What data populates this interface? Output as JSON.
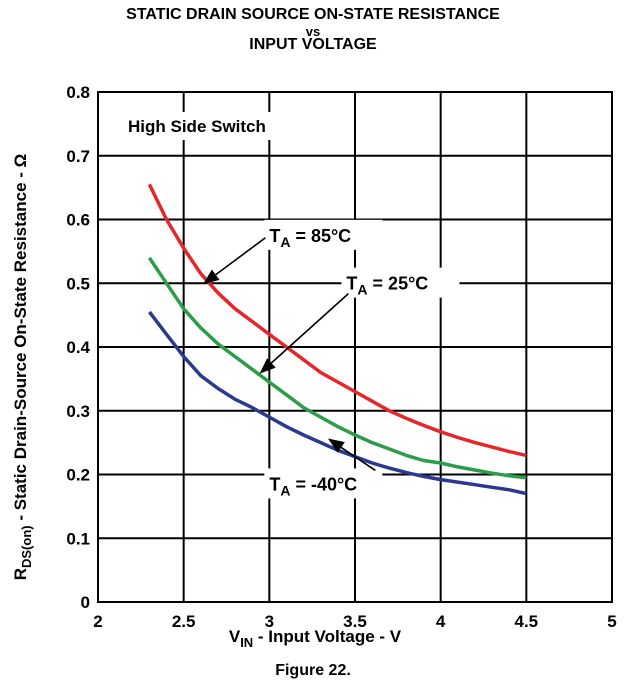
{
  "chart_data": {
    "type": "line",
    "title_lines": [
      "STATIC DRAIN SOURCE ON-STATE RESISTANCE",
      "vs",
      "INPUT VOLTAGE"
    ],
    "xlabel": {
      "main": "V",
      "sub": "IN",
      "rest": " - Input Voltage - V"
    },
    "ylabel": {
      "main": "R",
      "sub": "DS(on)",
      "rest": " - Static Drain-Source On-State Resistance - Ω"
    },
    "xlim": [
      2,
      5
    ],
    "ylim": [
      0,
      0.8
    ],
    "x_ticks": [
      2,
      2.5,
      3,
      3.5,
      4,
      4.5,
      5
    ],
    "x_tick_labels": [
      "2",
      "2.5",
      "3",
      "3.5",
      "4",
      "4.5",
      "5"
    ],
    "y_ticks": [
      0,
      0.1,
      0.2,
      0.3,
      0.4,
      0.5,
      0.6,
      0.7,
      0.8
    ],
    "y_tick_labels": [
      "0",
      "0.1",
      "0.2",
      "0.3",
      "0.4",
      "0.5",
      "0.6",
      "0.7",
      "0.8"
    ],
    "grid": true,
    "annotation_box": "High Side Switch",
    "series": [
      {
        "color": "#e8262a",
        "x": [
          2.3,
          2.4,
          2.5,
          2.6,
          2.7,
          2.8,
          2.9,
          3.0,
          3.1,
          3.2,
          3.3,
          3.4,
          3.5,
          3.6,
          3.7,
          3.8,
          3.9,
          4.0,
          4.1,
          4.2,
          4.3,
          4.4,
          4.5
        ],
        "y": [
          0.655,
          0.6,
          0.555,
          0.515,
          0.485,
          0.46,
          0.44,
          0.42,
          0.4,
          0.38,
          0.36,
          0.345,
          0.33,
          0.315,
          0.3,
          0.288,
          0.277,
          0.267,
          0.258,
          0.25,
          0.243,
          0.236,
          0.23
        ]
      },
      {
        "color": "#2a9d48",
        "x": [
          2.3,
          2.4,
          2.5,
          2.6,
          2.7,
          2.8,
          2.9,
          3.0,
          3.1,
          3.2,
          3.3,
          3.4,
          3.5,
          3.6,
          3.7,
          3.8,
          3.9,
          4.0,
          4.1,
          4.2,
          4.3,
          4.4,
          4.5
        ],
        "y": [
          0.54,
          0.5,
          0.46,
          0.43,
          0.405,
          0.385,
          0.365,
          0.345,
          0.325,
          0.305,
          0.29,
          0.275,
          0.262,
          0.25,
          0.24,
          0.23,
          0.222,
          0.218,
          0.212,
          0.207,
          0.202,
          0.198,
          0.195
        ]
      },
      {
        "color": "#2b3990",
        "x": [
          2.3,
          2.4,
          2.5,
          2.6,
          2.7,
          2.8,
          2.9,
          3.0,
          3.1,
          3.2,
          3.3,
          3.4,
          3.5,
          3.6,
          3.7,
          3.8,
          3.9,
          4.0,
          4.1,
          4.2,
          4.3,
          4.4,
          4.5
        ],
        "y": [
          0.455,
          0.42,
          0.385,
          0.355,
          0.335,
          0.318,
          0.305,
          0.29,
          0.275,
          0.262,
          0.25,
          0.238,
          0.228,
          0.218,
          0.21,
          0.203,
          0.197,
          0.192,
          0.188,
          0.184,
          0.18,
          0.176,
          0.17
        ]
      }
    ],
    "annotations": [
      {
        "text_main": "T",
        "text_sub": "A",
        "text_rest": " = 85°C",
        "text_x": 3.0,
        "text_y": 0.565,
        "arrow_to_x": 2.62,
        "arrow_to_y": 0.5
      },
      {
        "text_main": "T",
        "text_sub": "A",
        "text_rest": " = 25°C",
        "text_x": 3.45,
        "text_y": 0.49,
        "arrow_to_x": 2.95,
        "arrow_to_y": 0.36
      },
      {
        "text_main": "T",
        "text_sub": "A",
        "text_rest": " = -40°C",
        "text_x": 3.0,
        "text_y": 0.175,
        "arrow_to_x": 3.35,
        "arrow_to_y": 0.255
      }
    ]
  },
  "caption": "Figure 22."
}
